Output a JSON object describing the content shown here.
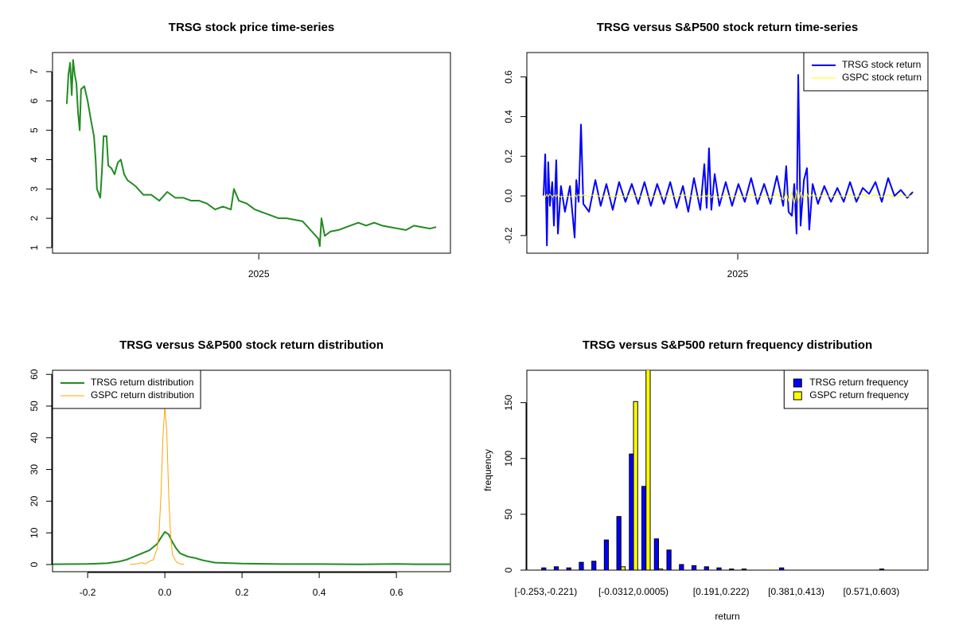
{
  "chart_data": [
    {
      "type": "line",
      "title": "TRSG stock price time-series",
      "x": [
        2024.421,
        2024.426,
        2024.431,
        2024.436,
        2024.44,
        2024.445,
        2024.45,
        2024.455,
        2024.46,
        2024.464,
        2024.474,
        2024.484,
        2024.493,
        2024.503,
        2024.508,
        2024.512,
        2024.522,
        2024.527,
        2024.532,
        2024.541,
        2024.546,
        2024.556,
        2024.565,
        2024.575,
        2024.584,
        2024.594,
        2024.604,
        2024.628,
        2024.652,
        2024.676,
        2024.7,
        2024.724,
        2024.748,
        2024.772,
        2024.796,
        2024.82,
        2024.844,
        2024.868,
        2024.892,
        2024.916,
        2024.925,
        2024.94,
        2024.964,
        2024.988,
        2025.012,
        2025.036,
        2025.06,
        2025.084,
        2025.108,
        2025.132,
        2025.156,
        2025.18,
        2025.184,
        2025.189,
        2025.199,
        2025.216,
        2025.24,
        2025.264,
        2025.3,
        2025.324,
        2025.348,
        2025.372,
        2025.396,
        2025.42,
        2025.444,
        2025.468,
        2025.492,
        2025.516,
        2025.535
      ],
      "series": [
        {
          "color": "#228B22",
          "values": [
            5.9,
            6.9,
            7.3,
            6.2,
            7.4,
            6.9,
            6.6,
            5.6,
            5.0,
            6.4,
            6.5,
            6.0,
            5.4,
            4.8,
            4.0,
            3.0,
            2.7,
            3.6,
            4.8,
            4.8,
            3.8,
            3.7,
            3.5,
            3.9,
            4.0,
            3.5,
            3.3,
            3.1,
            2.8,
            2.8,
            2.6,
            2.9,
            2.7,
            2.7,
            2.6,
            2.6,
            2.5,
            2.3,
            2.4,
            2.3,
            3.0,
            2.6,
            2.5,
            2.3,
            2.2,
            2.1,
            2.0,
            2.0,
            1.95,
            1.9,
            1.6,
            1.3,
            1.05,
            2.0,
            1.4,
            1.55,
            1.6,
            1.7,
            1.85,
            1.75,
            1.85,
            1.75,
            1.7,
            1.65,
            1.6,
            1.75,
            1.7,
            1.65,
            1.7
          ]
        }
      ],
      "xlim": [
        2024.378,
        2025.578
      ],
      "xticks": [
        2025
      ],
      "ylim": [
        0.81,
        7.65
      ],
      "yticks": [
        1,
        2,
        3,
        4,
        5,
        6,
        7
      ]
    },
    {
      "type": "line",
      "title": "TRSG versus S&P500 stock return time-series",
      "x": [
        2024.419,
        2024.424,
        2024.429,
        2024.433,
        2024.438,
        2024.445,
        2024.45,
        2024.457,
        2024.462,
        2024.471,
        2024.483,
        2024.498,
        2024.512,
        2024.517,
        2024.524,
        2024.531,
        2024.538,
        2024.555,
        2024.574,
        2024.59,
        2024.607,
        2024.626,
        2024.645,
        2024.664,
        2024.683,
        2024.702,
        2024.721,
        2024.74,
        2024.759,
        2024.779,
        2024.798,
        2024.817,
        2024.836,
        2024.852,
        2024.869,
        2024.888,
        2024.9,
        2024.907,
        2024.914,
        2024.921,
        2024.931,
        2024.945,
        2024.964,
        2024.983,
        2025.002,
        2025.021,
        2025.04,
        2025.059,
        2025.079,
        2025.098,
        2025.117,
        2025.136,
        2025.145,
        2025.152,
        2025.162,
        2025.169,
        2025.176,
        2025.181,
        2025.188,
        2025.198,
        2025.207,
        2025.214,
        2025.224,
        2025.24,
        2025.259,
        2025.279,
        2025.298,
        2025.317,
        2025.336,
        2025.355,
        2025.374,
        2025.393,
        2025.412,
        2025.431,
        2025.45,
        2025.469,
        2025.488,
        2025.507,
        2025.524
      ],
      "series": [
        {
          "name": "TRSG stock return",
          "color": "#0000FF",
          "values": [
            0,
            0.21,
            -0.25,
            0.17,
            -0.05,
            0.07,
            -0.15,
            0.18,
            -0.19,
            0.05,
            -0.08,
            0.05,
            -0.21,
            0.08,
            -0.03,
            0.36,
            -0.04,
            -0.08,
            0.08,
            -0.05,
            0.06,
            -0.07,
            0.07,
            -0.03,
            0.06,
            -0.04,
            0.07,
            -0.05,
            0.06,
            -0.04,
            0.07,
            -0.06,
            0.05,
            -0.08,
            0.09,
            -0.07,
            0.16,
            -0.06,
            0.24,
            -0.07,
            0.11,
            -0.05,
            0.07,
            -0.05,
            0.06,
            -0.03,
            0.09,
            -0.04,
            0.06,
            -0.04,
            0.1,
            -0.05,
            0.15,
            -0.08,
            -0.1,
            0.06,
            -0.19,
            0.61,
            -0.15,
            0.08,
            0.14,
            -0.17,
            0.06,
            -0.04,
            0.05,
            -0.03,
            0.04,
            -0.03,
            0.07,
            -0.03,
            0.04,
            0.01,
            0.07,
            -0.03,
            0.09,
            0,
            0.03,
            -0.01,
            0.02
          ]
        },
        {
          "name": "GSPC stock return",
          "color": "#FFFF00",
          "values": [
            0.005,
            -0.006,
            0.008,
            -0.004,
            0.01,
            -0.008,
            0.006,
            -0.005,
            0.009,
            -0.007,
            0.004,
            -0.006,
            0.008,
            -0.005,
            0.007,
            -0.009,
            0.006,
            -0.004,
            0.01,
            -0.007,
            0.005,
            -0.008,
            0.006,
            -0.005,
            0.009,
            -0.006,
            0.007,
            -0.01,
            0.008,
            -0.005,
            0.006,
            -0.007,
            0.009,
            -0.006,
            0.005,
            -0.008,
            0.007,
            -0.004,
            0.012,
            -0.009,
            0.006,
            -0.01,
            0.008,
            -0.007,
            0.005,
            -0.006,
            0.009,
            -0.008,
            0.006,
            -0.01,
            0.011,
            -0.02,
            0.015,
            -0.025,
            0.02,
            -0.04,
            0.03,
            -0.035,
            0.018,
            -0.015,
            0.012,
            -0.01,
            0.008,
            -0.006,
            0.009,
            -0.007,
            0.006,
            -0.005,
            0.008,
            -0.006,
            0.007,
            -0.004,
            0.006,
            -0.005,
            0.008,
            -0.006,
            0.005,
            -0.004,
            0.006
          ]
        }
      ],
      "xlim": [
        2024.369,
        2025.569
      ],
      "xticks": [
        2025
      ],
      "ylim": [
        -0.289,
        0.723
      ],
      "yticks": [
        -0.2,
        {
          "value": 0,
          "label": "0.0"
        },
        0.2,
        0.4,
        0.6
      ],
      "legend": "topright"
    },
    {
      "type": "line",
      "title": "TRSG versus S&P500 stock return distribution",
      "series": [
        {
          "name": "TRSG return distribution",
          "color": "#228B22",
          "x": [
            -0.29,
            -0.2,
            -0.15,
            -0.12,
            -0.1,
            -0.08,
            -0.06,
            -0.04,
            -0.02,
            -0.01,
            0,
            0.01,
            0.02,
            0.03,
            0.04,
            0.06,
            0.08,
            0.1,
            0.13,
            0.2,
            0.3,
            0.4,
            0.5,
            0.6,
            0.65,
            0.74
          ],
          "values": [
            0.1,
            0.2,
            0.4,
            0.9,
            1.5,
            2.5,
            3.5,
            4.5,
            6.5,
            8.5,
            10.3,
            9.5,
            7,
            5,
            3.5,
            2.5,
            2,
            1.3,
            0.6,
            0.3,
            0.15,
            0.15,
            0.05,
            0.2,
            0.1,
            0.1
          ]
        },
        {
          "name": "GSPC return distribution",
          "color": "#FFA500",
          "x": [
            -0.09,
            -0.07,
            -0.06,
            -0.05,
            -0.04,
            -0.03,
            -0.02,
            -0.015,
            -0.01,
            -0.005,
            0,
            0.005,
            0.01,
            0.015,
            0.02,
            0.03,
            0.04,
            0.05
          ],
          "values": [
            0,
            0.3,
            0.6,
            0.2,
            1,
            1.5,
            5,
            10,
            22,
            40,
            50,
            42,
            22,
            9,
            3,
            0.8,
            0.2,
            0
          ]
        }
      ],
      "xlim": [
        -0.291,
        0.74
      ],
      "xticks": [
        -0.2,
        {
          "value": 0,
          "label": "0.0"
        },
        0.2,
        0.4,
        0.6
      ],
      "ylim": [
        -2.26,
        61.3
      ],
      "yticks": [
        0,
        10,
        20,
        30,
        40,
        50,
        60
      ],
      "legend": "topleft"
    },
    {
      "type": "bar",
      "title": "TRSG versus S&P500 return frequency distribution",
      "categories": [
        "[-0.253,-0.221)",
        null,
        null,
        null,
        null,
        null,
        null,
        "[-0.0312,0.0005)",
        null,
        null,
        null,
        null,
        null,
        null,
        "[0.191,0.222)",
        null,
        null,
        null,
        null,
        null,
        "[0.381,0.413)",
        null,
        null,
        null,
        null,
        null,
        "[0.571,0.603)",
        null,
        null,
        null
      ],
      "series": [
        {
          "name": "TRSG return frequency",
          "color": "#0000FF",
          "values": [
            2,
            3,
            2,
            7,
            8,
            27,
            48,
            104,
            75,
            28,
            18,
            5,
            4,
            3,
            2,
            1,
            1,
            0,
            0,
            2,
            0,
            0,
            0,
            0,
            0,
            0,
            0,
            1,
            0,
            0
          ]
        },
        {
          "name": "GSPC return frequency",
          "color": "#FFFF00",
          "values": [
            0,
            0,
            0,
            0,
            0,
            0,
            3,
            151,
            185,
            1,
            0,
            0,
            0,
            0,
            0,
            0,
            0,
            0,
            0,
            0,
            0,
            0,
            0,
            0,
            0,
            0,
            0,
            0,
            0,
            0
          ]
        }
      ],
      "xlabel": "return",
      "ylabel": "frequency",
      "ylim": [
        0,
        179
      ],
      "yticks": [
        0,
        50,
        100,
        150
      ],
      "legend": "topright"
    }
  ]
}
